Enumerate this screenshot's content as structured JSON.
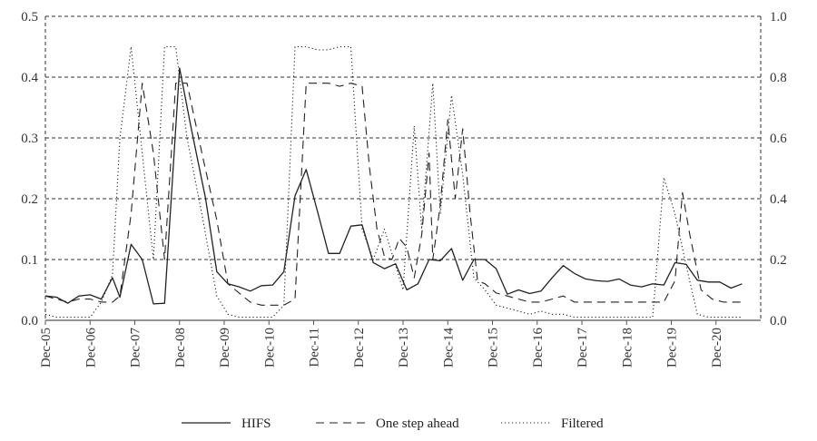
{
  "chart_data": {
    "type": "line",
    "title": "",
    "xlabel": "",
    "ylabel": "",
    "y2label": "",
    "grid": "horizontal dashed",
    "legend_position": "bottom",
    "ylim": [
      0,
      0.5
    ],
    "y2lim": [
      0,
      1.0
    ],
    "yticks": [
      "0.0",
      "0.1",
      "0.2",
      "0.3",
      "0.4",
      "0.5"
    ],
    "y2ticks": [
      "0.0",
      "0.2",
      "0.4",
      "0.6",
      "0.8",
      "1.0"
    ],
    "x_tick_labels": [
      "Dec-05",
      "Dec-06",
      "Dec-07",
      "Dec-08",
      "Dec-09",
      "Dec-10",
      "Dec-11",
      "Dec-12",
      "Dec-13",
      "Dec-14",
      "Dec-15",
      "Dec-16",
      "Dec-17",
      "Dec-18",
      "Dec-19",
      "Dec-20"
    ],
    "x_start": "Dec-05",
    "x_end": "Dec-21",
    "series": [
      {
        "name": "HIFS",
        "axis": "left",
        "style": "solid",
        "points": [
          [
            "Dec-05",
            0.04
          ],
          [
            "Mar-06",
            0.038
          ],
          [
            "Jun-06",
            0.028
          ],
          [
            "Sep-06",
            0.04
          ],
          [
            "Dec-06",
            0.042
          ],
          [
            "Mar-07",
            0.035
          ],
          [
            "Jun-07",
            0.07
          ],
          [
            "Aug-07",
            0.038
          ],
          [
            "Nov-07",
            0.125
          ],
          [
            "Feb-08",
            0.1
          ],
          [
            "May-08",
            0.027
          ],
          [
            "Aug-08",
            0.028
          ],
          [
            "Dec-08",
            0.415
          ],
          [
            "Mar-09",
            0.32
          ],
          [
            "Jul-09",
            0.2
          ],
          [
            "Oct-09",
            0.08
          ],
          [
            "Jan-10",
            0.06
          ],
          [
            "Apr-10",
            0.055
          ],
          [
            "Jul-10",
            0.048
          ],
          [
            "Oct-10",
            0.057
          ],
          [
            "Jan-11",
            0.058
          ],
          [
            "Apr-11",
            0.08
          ],
          [
            "Jul-11",
            0.205
          ],
          [
            "Oct-11",
            0.248
          ],
          [
            "Jan-12",
            0.18
          ],
          [
            "Apr-12",
            0.11
          ],
          [
            "Jul-12",
            0.11
          ],
          [
            "Oct-12",
            0.155
          ],
          [
            "Jan-13",
            0.157
          ],
          [
            "Apr-13",
            0.095
          ],
          [
            "Jul-13",
            0.085
          ],
          [
            "Oct-13",
            0.093
          ],
          [
            "Jan-14",
            0.05
          ],
          [
            "Apr-14",
            0.06
          ],
          [
            "Jul-14",
            0.1
          ],
          [
            "Oct-14",
            0.098
          ],
          [
            "Jan-15",
            0.118
          ],
          [
            "Apr-15",
            0.066
          ],
          [
            "Jul-15",
            0.1
          ],
          [
            "Oct-15",
            0.1
          ],
          [
            "Jan-16",
            0.085
          ],
          [
            "Apr-16",
            0.043
          ],
          [
            "Jul-16",
            0.05
          ],
          [
            "Oct-16",
            0.044
          ],
          [
            "Jan-17",
            0.048
          ],
          [
            "Apr-17",
            0.07
          ],
          [
            "Jul-17",
            0.09
          ],
          [
            "Oct-17",
            0.077
          ],
          [
            "Jan-18",
            0.068
          ],
          [
            "Apr-18",
            0.065
          ],
          [
            "Jul-18",
            0.064
          ],
          [
            "Oct-18",
            0.068
          ],
          [
            "Jan-19",
            0.058
          ],
          [
            "Apr-19",
            0.055
          ],
          [
            "Jul-19",
            0.06
          ],
          [
            "Oct-19",
            0.058
          ],
          [
            "Jan-20",
            0.095
          ],
          [
            "Apr-20",
            0.092
          ],
          [
            "Jul-20",
            0.066
          ],
          [
            "Oct-20",
            0.063
          ],
          [
            "Jan-21",
            0.063
          ],
          [
            "Apr-21",
            0.053
          ],
          [
            "Jul-21",
            0.06
          ]
        ]
      },
      {
        "name": "One step ahead",
        "axis": "right",
        "style": "dashed",
        "points": [
          [
            "Dec-05",
            0.08
          ],
          [
            "Mar-06",
            0.07
          ],
          [
            "Jun-06",
            0.06
          ],
          [
            "Sep-06",
            0.07
          ],
          [
            "Dec-06",
            0.07
          ],
          [
            "Mar-07",
            0.06
          ],
          [
            "Jun-07",
            0.06
          ],
          [
            "Aug-07",
            0.08
          ],
          [
            "Nov-07",
            0.35
          ],
          [
            "Feb-08",
            0.78
          ],
          [
            "May-08",
            0.55
          ],
          [
            "Aug-08",
            0.2
          ],
          [
            "Nov-08",
            0.78
          ],
          [
            "Feb-09",
            0.78
          ],
          [
            "Jun-09",
            0.55
          ],
          [
            "Oct-09",
            0.33
          ],
          [
            "Jan-10",
            0.12
          ],
          [
            "Apr-10",
            0.09
          ],
          [
            "Jul-10",
            0.06
          ],
          [
            "Oct-10",
            0.05
          ],
          [
            "Jan-11",
            0.05
          ],
          [
            "Apr-11",
            0.05
          ],
          [
            "Jul-11",
            0.07
          ],
          [
            "Oct-11",
            0.78
          ],
          [
            "Jan-12",
            0.78
          ],
          [
            "Apr-12",
            0.78
          ],
          [
            "Jul-12",
            0.77
          ],
          [
            "Oct-12",
            0.78
          ],
          [
            "Jan-13",
            0.77
          ],
          [
            "Mar-13",
            0.5
          ],
          [
            "May-13",
            0.3
          ],
          [
            "Jul-13",
            0.21
          ],
          [
            "Sep-13",
            0.2
          ],
          [
            "Nov-13",
            0.27
          ],
          [
            "Jan-14",
            0.24
          ],
          [
            "Mar-14",
            0.14
          ],
          [
            "May-14",
            0.28
          ],
          [
            "Jul-14",
            0.55
          ],
          [
            "Aug-14",
            0.2
          ],
          [
            "Oct-14",
            0.38
          ],
          [
            "Dec-14",
            0.66
          ],
          [
            "Feb-15",
            0.4
          ],
          [
            "Apr-15",
            0.63
          ],
          [
            "Jun-15",
            0.35
          ],
          [
            "Aug-15",
            0.13
          ],
          [
            "Oct-15",
            0.12
          ],
          [
            "Jan-16",
            0.09
          ],
          [
            "Apr-16",
            0.08
          ],
          [
            "Jul-16",
            0.07
          ],
          [
            "Oct-16",
            0.06
          ],
          [
            "Jan-17",
            0.06
          ],
          [
            "Apr-17",
            0.07
          ],
          [
            "Jul-17",
            0.08
          ],
          [
            "Oct-17",
            0.06
          ],
          [
            "Jan-18",
            0.06
          ],
          [
            "Apr-18",
            0.06
          ],
          [
            "Jul-18",
            0.06
          ],
          [
            "Oct-18",
            0.06
          ],
          [
            "Jan-19",
            0.06
          ],
          [
            "Apr-19",
            0.06
          ],
          [
            "Jul-19",
            0.06
          ],
          [
            "Oct-19",
            0.06
          ],
          [
            "Jan-20",
            0.13
          ],
          [
            "Mar-20",
            0.42
          ],
          [
            "May-20",
            0.28
          ],
          [
            "Aug-20",
            0.1
          ],
          [
            "Nov-20",
            0.07
          ],
          [
            "Feb-21",
            0.06
          ],
          [
            "May-21",
            0.06
          ],
          [
            "Aug-21",
            0.06
          ]
        ]
      },
      {
        "name": "Filtered",
        "axis": "right",
        "style": "dotted",
        "points": [
          [
            "Dec-05",
            0.02
          ],
          [
            "Mar-06",
            0.01
          ],
          [
            "Jun-06",
            0.01
          ],
          [
            "Sep-06",
            0.01
          ],
          [
            "Dec-06",
            0.01
          ],
          [
            "Mar-07",
            0.06
          ],
          [
            "Jun-07",
            0.15
          ],
          [
            "Aug-07",
            0.6
          ],
          [
            "Nov-07",
            0.9
          ],
          [
            "Feb-08",
            0.55
          ],
          [
            "May-08",
            0.2
          ],
          [
            "Aug-08",
            0.9
          ],
          [
            "Nov-08",
            0.9
          ],
          [
            "Feb-09",
            0.6
          ],
          [
            "Jun-09",
            0.35
          ],
          [
            "Oct-09",
            0.08
          ],
          [
            "Jan-10",
            0.02
          ],
          [
            "Apr-10",
            0.01
          ],
          [
            "Jul-10",
            0.01
          ],
          [
            "Oct-10",
            0.01
          ],
          [
            "Jan-11",
            0.01
          ],
          [
            "Apr-11",
            0.05
          ],
          [
            "Jul-11",
            0.9
          ],
          [
            "Oct-11",
            0.9
          ],
          [
            "Jan-12",
            0.89
          ],
          [
            "Apr-12",
            0.89
          ],
          [
            "Jul-12",
            0.9
          ],
          [
            "Oct-12",
            0.9
          ],
          [
            "Jan-13",
            0.3
          ],
          [
            "Apr-13",
            0.2
          ],
          [
            "Jul-13",
            0.3
          ],
          [
            "Oct-13",
            0.18
          ],
          [
            "Dec-13",
            0.1
          ],
          [
            "Mar-14",
            0.64
          ],
          [
            "May-14",
            0.3
          ],
          [
            "Aug-14",
            0.78
          ],
          [
            "Oct-14",
            0.35
          ],
          [
            "Jan-15",
            0.74
          ],
          [
            "Apr-15",
            0.48
          ],
          [
            "Jul-15",
            0.14
          ],
          [
            "Oct-15",
            0.1
          ],
          [
            "Jan-16",
            0.05
          ],
          [
            "Apr-16",
            0.04
          ],
          [
            "Jul-16",
            0.03
          ],
          [
            "Oct-16",
            0.02
          ],
          [
            "Jan-17",
            0.03
          ],
          [
            "Apr-17",
            0.02
          ],
          [
            "Jul-17",
            0.02
          ],
          [
            "Oct-17",
            0.01
          ],
          [
            "Jan-18",
            0.01
          ],
          [
            "Apr-18",
            0.01
          ],
          [
            "Jul-18",
            0.01
          ],
          [
            "Oct-18",
            0.01
          ],
          [
            "Jan-19",
            0.01
          ],
          [
            "Apr-19",
            0.01
          ],
          [
            "Jul-19",
            0.01
          ],
          [
            "Oct-19",
            0.47
          ],
          [
            "Jan-20",
            0.35
          ],
          [
            "Apr-20",
            0.18
          ],
          [
            "Jul-20",
            0.02
          ],
          [
            "Oct-20",
            0.01
          ],
          [
            "Jan-21",
            0.01
          ],
          [
            "Apr-21",
            0.01
          ],
          [
            "Jul-21",
            0.01
          ]
        ]
      }
    ]
  },
  "legend": {
    "items": [
      {
        "label": "HIFS",
        "style": "solid"
      },
      {
        "label": "One step ahead",
        "style": "dashed"
      },
      {
        "label": "Filtered",
        "style": "dotted"
      }
    ]
  },
  "colors": {
    "line": "#222222",
    "grid": "#333333",
    "axis": "#555555"
  }
}
